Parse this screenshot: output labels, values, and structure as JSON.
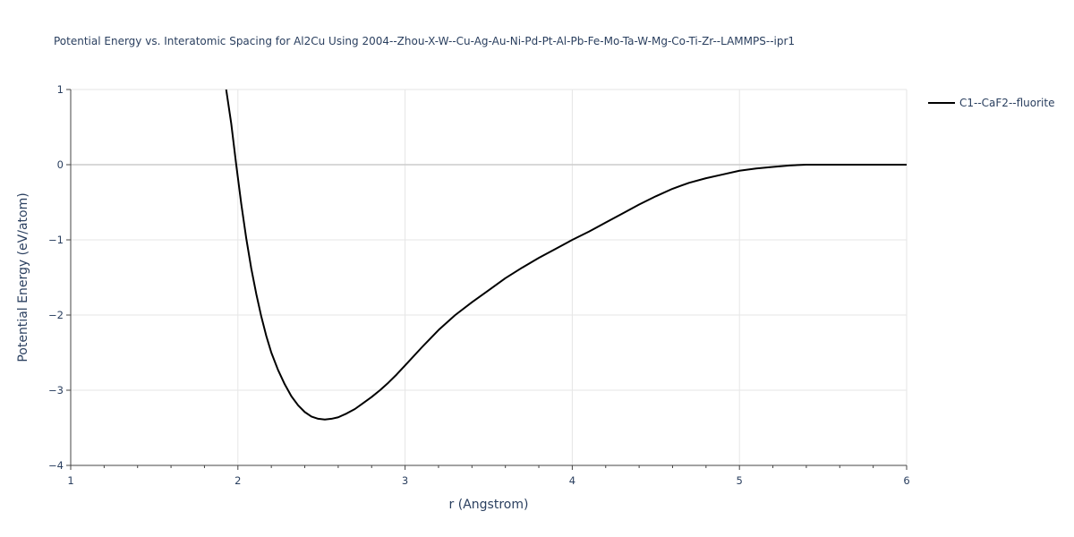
{
  "chart_data": {
    "type": "line",
    "title": "Potential Energy vs. Interatomic Spacing for Al2Cu Using 2004--Zhou-X-W--Cu-Ag-Au-Ni-Pd-Pt-Al-Pb-Fe-Mo-Ta-W-Mg-Co-Ti-Zr--LAMMPS--ipr1",
    "xlabel": "r (Angstrom)",
    "ylabel": "Potential Energy (eV/atom)",
    "xlim": [
      1,
      6
    ],
    "ylim": [
      -4,
      1
    ],
    "x_ticks": [
      1,
      2,
      3,
      4,
      5,
      6
    ],
    "x_tick_labels": [
      "1",
      "2",
      "3",
      "4",
      "5",
      "6"
    ],
    "y_ticks": [
      -4,
      -3,
      -2,
      -1,
      0,
      1
    ],
    "y_tick_labels": [
      "−4",
      "−3",
      "−2",
      "−1",
      "0",
      "1"
    ],
    "grid": true,
    "legend_position": "top-right",
    "series": [
      {
        "name": "C1--CaF2--fluorite",
        "color": "#000000",
        "x": [
          1.93,
          1.96,
          1.99,
          2.02,
          2.05,
          2.08,
          2.11,
          2.14,
          2.17,
          2.2,
          2.24,
          2.28,
          2.32,
          2.36,
          2.4,
          2.44,
          2.48,
          2.52,
          2.56,
          2.6,
          2.65,
          2.7,
          2.75,
          2.8,
          2.85,
          2.9,
          2.95,
          3.0,
          3.1,
          3.2,
          3.3,
          3.4,
          3.5,
          3.6,
          3.7,
          3.8,
          3.9,
          4.0,
          4.1,
          4.2,
          4.3,
          4.4,
          4.5,
          4.6,
          4.7,
          4.8,
          4.9,
          5.0,
          5.1,
          5.2,
          5.3,
          5.4,
          5.6,
          5.8,
          6.0
        ],
        "y": [
          1.0,
          0.55,
          0.0,
          -0.52,
          -0.98,
          -1.38,
          -1.72,
          -2.02,
          -2.28,
          -2.5,
          -2.73,
          -2.92,
          -3.08,
          -3.2,
          -3.29,
          -3.35,
          -3.38,
          -3.39,
          -3.38,
          -3.36,
          -3.31,
          -3.25,
          -3.17,
          -3.09,
          -3.0,
          -2.9,
          -2.79,
          -2.67,
          -2.43,
          -2.2,
          -2.0,
          -1.83,
          -1.67,
          -1.51,
          -1.37,
          -1.24,
          -1.12,
          -1.0,
          -0.89,
          -0.77,
          -0.65,
          -0.53,
          -0.42,
          -0.32,
          -0.24,
          -0.18,
          -0.13,
          -0.08,
          -0.05,
          -0.03,
          -0.01,
          0.0,
          0.0,
          0.0,
          0.0
        ]
      }
    ]
  }
}
